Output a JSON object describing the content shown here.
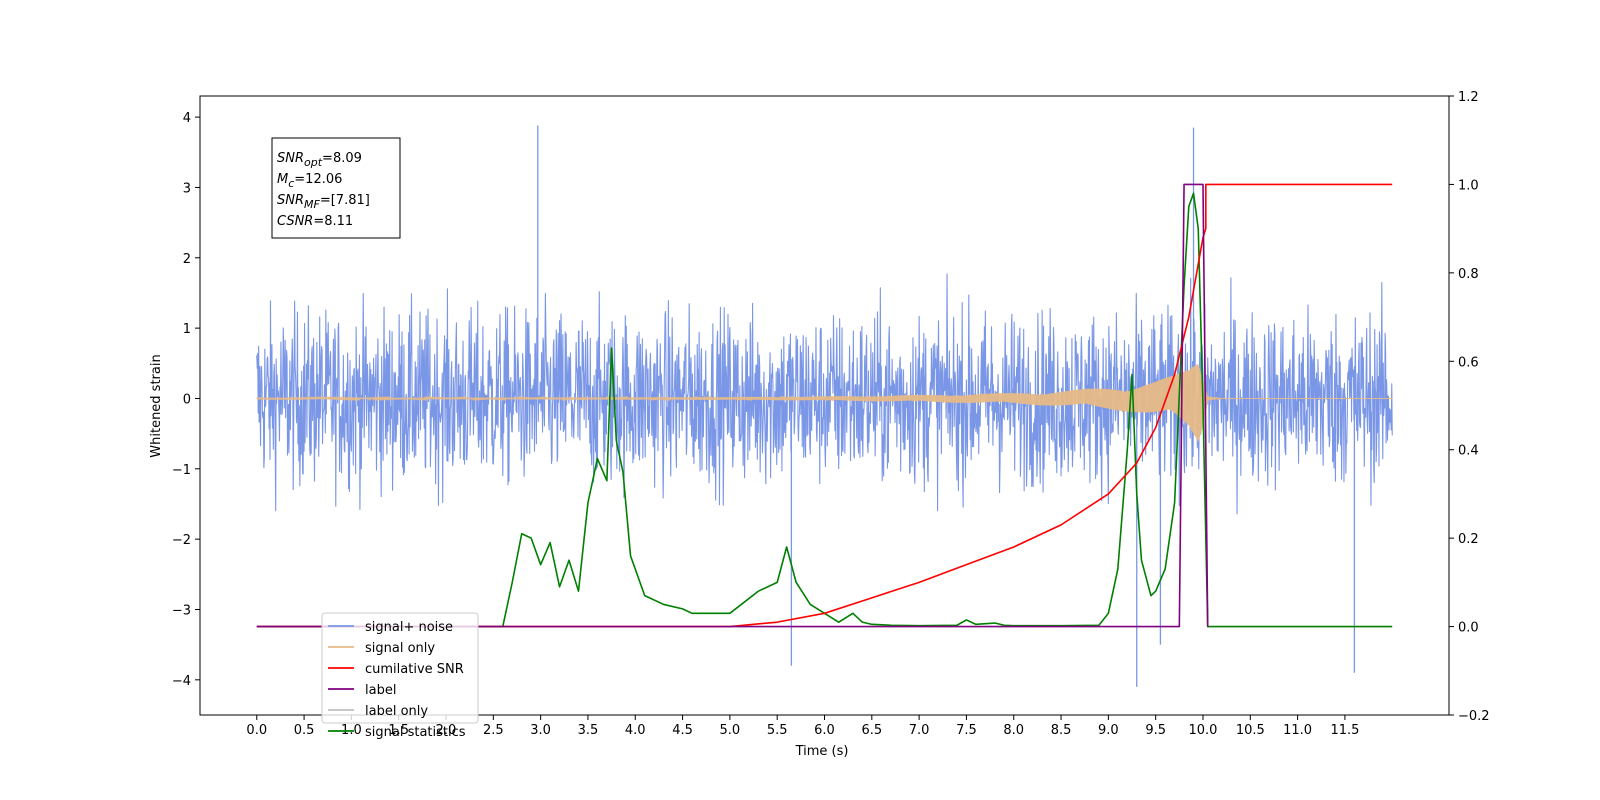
{
  "chart_data": {
    "type": "line",
    "title": "",
    "xlabel": "Time (s)",
    "ylabel_left": "Whitened strain",
    "ylabel_right": "",
    "xlim": [
      -0.6,
      12.6
    ],
    "ylim_left": [
      -4.5,
      4.3
    ],
    "ylim_right": [
      -0.2,
      1.2
    ],
    "x_ticks": [
      0.0,
      0.5,
      1.0,
      1.5,
      2.0,
      2.5,
      3.0,
      3.5,
      4.0,
      4.5,
      5.0,
      5.5,
      6.0,
      6.5,
      7.0,
      7.5,
      8.0,
      8.5,
      9.0,
      9.5,
      10.0,
      10.5,
      11.0,
      11.5
    ],
    "x_tick_labels": [
      "0.0",
      "0.5",
      "1.0",
      "1.5",
      "2.0",
      "2.5",
      "3.0",
      "3.5",
      "4.0",
      "4.5",
      "5.0",
      "5.5",
      "6.0",
      "6.5",
      "7.0",
      "7.5",
      "8.0",
      "8.5",
      "9.0",
      "9.5",
      "10.0",
      "10.5",
      "11.0",
      "11.5"
    ],
    "y_left_ticks": [
      -4,
      -3,
      -2,
      -1,
      0,
      1,
      2,
      3,
      4
    ],
    "y_left_tick_labels": [
      "−4",
      "−3",
      "−2",
      "−1",
      "0",
      "1",
      "2",
      "3",
      "4"
    ],
    "y_right_ticks": [
      -0.2,
      0.0,
      0.2,
      0.4,
      0.6,
      0.8,
      1.0,
      1.2
    ],
    "y_right_tick_labels": [
      "−0.2",
      "0.0",
      "0.2",
      "0.4",
      "0.6",
      "0.8",
      "1.0",
      "1.2"
    ],
    "legend_position": "lower-left",
    "annotation": {
      "position": "top-left",
      "lines": [
        {
          "var": "SNR",
          "sub": "opt",
          "value": "=8.09"
        },
        {
          "var": "M",
          "sub": "c",
          "value": "=12.06"
        },
        {
          "var": "SNR",
          "sub": "MF",
          "value": "=[7.81]"
        },
        {
          "var": "CSNR",
          "sub": "",
          "value": "=8.11"
        }
      ]
    },
    "series": [
      {
        "name": "signal+ noise",
        "axis": "left",
        "color": "#7a96e6",
        "kind": "noise",
        "x_range": [
          0.0,
          12.0
        ],
        "amplitude_range": [
          -4.1,
          3.9
        ],
        "typical_range": [
          -2.5,
          2.5
        ],
        "spikes": [
          [
            2.97,
            3.88
          ],
          [
            9.9,
            3.85
          ],
          [
            9.3,
            -4.1
          ],
          [
            5.65,
            -3.8
          ],
          [
            11.6,
            -3.9
          ],
          [
            9.55,
            -3.5
          ]
        ]
      },
      {
        "name": "signal only",
        "axis": "left",
        "color": "#e6b987",
        "kind": "chirp",
        "x": [
          0.0,
          5.0,
          6.0,
          7.0,
          8.0,
          8.5,
          9.0,
          9.3,
          9.5,
          9.7,
          9.85,
          9.95,
          10.0,
          10.05,
          10.2,
          12.0
        ],
        "envelope": [
          0.005,
          0.02,
          0.03,
          0.05,
          0.08,
          0.11,
          0.16,
          0.2,
          0.25,
          0.33,
          0.45,
          0.65,
          0.4,
          0.03,
          0.0,
          0.0
        ]
      },
      {
        "name": "cumilative SNR",
        "axis": "right",
        "color": "#ff0000",
        "x": [
          0.0,
          5.0,
          5.5,
          6.0,
          6.5,
          7.0,
          7.5,
          8.0,
          8.5,
          9.0,
          9.3,
          9.5,
          9.7,
          9.85,
          9.95,
          10.0,
          10.03,
          10.03,
          12.0
        ],
        "values": [
          0.0,
          0.0,
          0.01,
          0.03,
          0.065,
          0.1,
          0.14,
          0.18,
          0.23,
          0.3,
          0.37,
          0.45,
          0.57,
          0.7,
          0.82,
          0.88,
          0.9,
          1.0,
          1.0
        ]
      },
      {
        "name": "label",
        "axis": "right",
        "color": "#800080",
        "x": [
          0.0,
          9.75,
          9.8,
          10.0,
          10.05,
          10.05
        ],
        "values": [
          0.0,
          0.0,
          1.0,
          1.0,
          0.0,
          0.0
        ],
        "end_x": 10.05
      },
      {
        "name": "label only",
        "axis": "right",
        "color": "#c0c0c0",
        "x": [],
        "values": []
      },
      {
        "name": "signal statistics",
        "axis": "right",
        "color": "#008000",
        "x": [
          0.0,
          2.3,
          2.5,
          2.6,
          2.7,
          2.8,
          2.9,
          3.0,
          3.1,
          3.2,
          3.3,
          3.4,
          3.5,
          3.6,
          3.7,
          3.75,
          3.8,
          3.87,
          3.95,
          4.1,
          4.3,
          4.5,
          4.6,
          4.8,
          5.0,
          5.3,
          5.5,
          5.6,
          5.7,
          5.85,
          6.0,
          6.15,
          6.3,
          6.4,
          6.5,
          6.7,
          7.0,
          7.4,
          7.5,
          7.6,
          7.8,
          7.9,
          8.0,
          8.5,
          8.9,
          9.0,
          9.1,
          9.2,
          9.25,
          9.3,
          9.35,
          9.45,
          9.5,
          9.6,
          9.7,
          9.8,
          9.85,
          9.9,
          9.95,
          10.0,
          10.05,
          10.1,
          12.0
        ],
        "values": [
          0.0,
          0.0,
          0.0,
          0.0,
          0.1,
          0.21,
          0.2,
          0.14,
          0.19,
          0.09,
          0.15,
          0.08,
          0.28,
          0.38,
          0.33,
          0.63,
          0.42,
          0.35,
          0.16,
          0.07,
          0.05,
          0.04,
          0.03,
          0.03,
          0.03,
          0.08,
          0.1,
          0.18,
          0.1,
          0.05,
          0.03,
          0.01,
          0.03,
          0.01,
          0.005,
          0.003,
          0.002,
          0.003,
          0.015,
          0.005,
          0.008,
          0.003,
          0.002,
          0.002,
          0.003,
          0.03,
          0.13,
          0.4,
          0.57,
          0.3,
          0.15,
          0.07,
          0.08,
          0.13,
          0.28,
          0.77,
          0.95,
          0.98,
          0.9,
          0.5,
          0.0,
          0.0,
          0.0
        ]
      }
    ]
  }
}
